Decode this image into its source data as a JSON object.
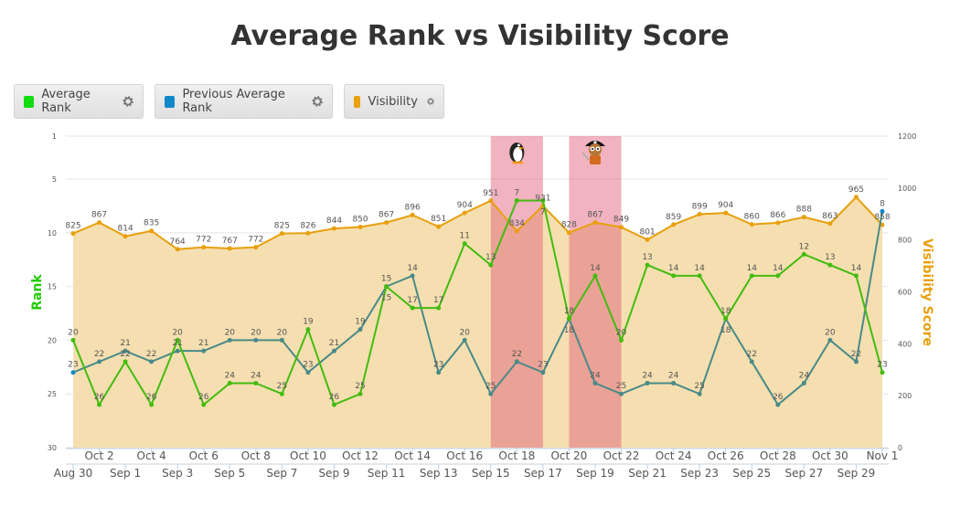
{
  "chart_data": {
    "type": "line",
    "title": "Average Rank vs Visibility Score",
    "categories": [
      "Aug 30",
      "Oct 2",
      "Sep 1",
      "Oct 4",
      "Sep 3",
      "Oct 6",
      "Sep 5",
      "Oct 8",
      "Sep 7",
      "Oct 10",
      "Sep 9",
      "Oct 12",
      "Sep 11",
      "Oct 14",
      "Sep 13",
      "Oct 16",
      "Sep 15",
      "Oct 18",
      "Sep 17",
      "Oct 20",
      "Sep 19",
      "Oct 22",
      "Sep 21",
      "Oct 24",
      "Sep 23",
      "Oct 26",
      "Sep 25",
      "Oct 28",
      "Sep 27",
      "Oct 30",
      "Sep 29",
      "Nov 1"
    ],
    "series": [
      {
        "name": "Average Rank",
        "axis": "left",
        "color": "#44bb11",
        "values": [
          20,
          26,
          22,
          26,
          20,
          26,
          24,
          24,
          25,
          19,
          26,
          25,
          15,
          17,
          17,
          11,
          13,
          7,
          7,
          18,
          14,
          20,
          13,
          14,
          14,
          18,
          14,
          14,
          12,
          13,
          14,
          23
        ]
      },
      {
        "name": "Previous Average Rank",
        "axis": "left",
        "color": "#4a8a88",
        "values": [
          23,
          22,
          21,
          22,
          21,
          21,
          20,
          20,
          20,
          23,
          21,
          19,
          15,
          14,
          23,
          20,
          25,
          22,
          23,
          18,
          24,
          25,
          24,
          24,
          25,
          18,
          22,
          26,
          24,
          20,
          22,
          8
        ]
      },
      {
        "name": "Visibility",
        "axis": "right",
        "color": "#e89f0c",
        "values": [
          825,
          867,
          814,
          835,
          764,
          772,
          767,
          772,
          825,
          826,
          844,
          850,
          867,
          896,
          851,
          904,
          951,
          834,
          931,
          828,
          867,
          849,
          801,
          859,
          899,
          904,
          860,
          866,
          888,
          863,
          965,
          858
        ]
      }
    ],
    "ylabel": "Rank",
    "ylabel_right": "Visibility Score",
    "ylim_left": [
      1,
      30
    ],
    "ylim_right": [
      0,
      1200
    ],
    "yticks_left": [
      1,
      5,
      10,
      15,
      20,
      25,
      30
    ],
    "yticks_right": [
      0,
      200,
      400,
      600,
      800,
      1000,
      1200
    ],
    "bands": [
      {
        "from": 16,
        "to": 18,
        "icon": "penguin"
      },
      {
        "from": 19,
        "to": 21,
        "icon": "pirate"
      }
    ],
    "legend": "top-left"
  },
  "legend": {
    "items": [
      {
        "label": "Average Rank",
        "color": "#11dd11"
      },
      {
        "label": "Previous Average Rank",
        "color": "#1188cc"
      },
      {
        "label": "Visibility",
        "color": "#e8a00c"
      }
    ]
  }
}
